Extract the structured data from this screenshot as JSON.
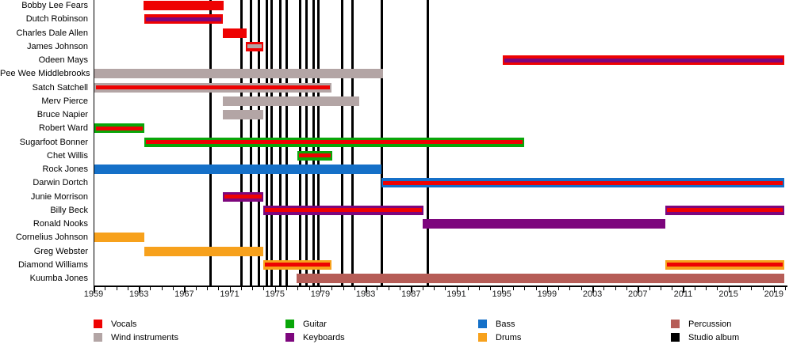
{
  "chart_data": {
    "type": "gantt-timeline",
    "description": "Band members timeline; horizontal bars show each member's tenure colored by instrument, with an optional inner stripe for a secondary role; vertical black lines mark studio album releases.",
    "x_axis": {
      "start": 1959,
      "end": 2020.2,
      "major_ticks": [
        1959,
        1963,
        1967,
        1971,
        1975,
        1979,
        1983,
        1987,
        1991,
        1995,
        1999,
        2003,
        2007,
        2011,
        2015,
        2019
      ],
      "minor_step": 1,
      "grid": false
    },
    "colors": {
      "vocals": "#ee0202",
      "wind_instruments": "#b3a5a5",
      "guitar": "#09a609",
      "keyboards": "#7d067d",
      "bass": "#1570c8",
      "drums": "#f7a11c",
      "percussion": "#b65d57",
      "studio_album": "#000000"
    },
    "members": [
      {
        "name": "Bobby Lee Fears",
        "segments": [
          {
            "start": 1963.4,
            "end": 1970.5,
            "instrument": "vocals",
            "stripe": null
          }
        ]
      },
      {
        "name": "Dutch Robinson",
        "segments": [
          {
            "start": 1963.5,
            "end": 1970.4,
            "instrument": "vocals",
            "stripe": "keyboards"
          }
        ]
      },
      {
        "name": "Charles Dale Allen",
        "segments": [
          {
            "start": 1970.4,
            "end": 1972.5,
            "instrument": "vocals",
            "stripe": null
          }
        ]
      },
      {
        "name": "James Johnson",
        "segments": [
          {
            "start": 1972.4,
            "end": 1974.0,
            "instrument": "vocals",
            "stripe": "wind_instruments"
          }
        ]
      },
      {
        "name": "Odeen Mays",
        "segments": [
          {
            "start": 1995.1,
            "end": 2019.9,
            "instrument": "vocals",
            "stripe": "keyboards"
          }
        ]
      },
      {
        "name": "Pee Wee Middlebrooks",
        "segments": [
          {
            "start": 1959.1,
            "end": 1984.5,
            "instrument": "wind_instruments",
            "stripe": null
          }
        ]
      },
      {
        "name": "Satch Satchell",
        "segments": [
          {
            "start": 1959.05,
            "end": 1980.0,
            "instrument": "wind_instruments",
            "stripe": "vocals"
          }
        ]
      },
      {
        "name": "Merv Pierce",
        "segments": [
          {
            "start": 1970.4,
            "end": 1982.4,
            "instrument": "wind_instruments",
            "stripe": null
          }
        ]
      },
      {
        "name": "Bruce Napier",
        "segments": [
          {
            "start": 1970.4,
            "end": 1974.0,
            "instrument": "wind_instruments",
            "stripe": null
          }
        ]
      },
      {
        "name": "Robert Ward",
        "segments": [
          {
            "start": 1959.05,
            "end": 1963.5,
            "instrument": "guitar",
            "stripe": "vocals"
          }
        ]
      },
      {
        "name": "Sugarfoot Bonner",
        "segments": [
          {
            "start": 1963.5,
            "end": 1997.0,
            "instrument": "guitar",
            "stripe": "vocals"
          }
        ]
      },
      {
        "name": "Chet Willis",
        "segments": [
          {
            "start": 1976.95,
            "end": 1980.05,
            "instrument": "guitar",
            "stripe": "vocals"
          }
        ]
      },
      {
        "name": "Rock Jones",
        "segments": [
          {
            "start": 1959.05,
            "end": 1984.4,
            "instrument": "bass",
            "stripe": null
          }
        ]
      },
      {
        "name": "Darwin Dortch",
        "segments": [
          {
            "start": 1984.4,
            "end": 2019.9,
            "instrument": "bass",
            "stripe": "vocals"
          }
        ]
      },
      {
        "name": "Junie Morrison",
        "segments": [
          {
            "start": 1970.4,
            "end": 1974.0,
            "instrument": "keyboards",
            "stripe": "vocals"
          }
        ]
      },
      {
        "name": "Billy Beck",
        "segments": [
          {
            "start": 1974.0,
            "end": 1988.1,
            "instrument": "keyboards",
            "stripe": "vocals"
          },
          {
            "start": 2009.4,
            "end": 2019.9,
            "instrument": "keyboards",
            "stripe": "vocals"
          }
        ]
      },
      {
        "name": "Ronald Nooks",
        "segments": [
          {
            "start": 1988.0,
            "end": 2009.4,
            "instrument": "keyboards",
            "stripe": null
          }
        ]
      },
      {
        "name": "Cornelius Johnson",
        "segments": [
          {
            "start": 1959.05,
            "end": 1963.5,
            "instrument": "drums",
            "stripe": null
          }
        ]
      },
      {
        "name": "Greg Webster",
        "segments": [
          {
            "start": 1963.5,
            "end": 1974.0,
            "instrument": "drums",
            "stripe": null
          }
        ]
      },
      {
        "name": "Diamond Williams",
        "segments": [
          {
            "start": 1974.0,
            "end": 1980.0,
            "instrument": "drums",
            "stripe": "vocals"
          },
          {
            "start": 2009.4,
            "end": 2019.9,
            "instrument": "drums",
            "stripe": "vocals"
          }
        ]
      },
      {
        "name": "Kuumba Jones",
        "segments": [
          {
            "start": 1976.9,
            "end": 2019.9,
            "instrument": "percussion",
            "stripe": null
          }
        ]
      }
    ],
    "album_years": [
      1969.35,
      1972.05,
      1972.85,
      1973.6,
      1974.25,
      1974.72,
      1975.5,
      1976.05,
      1977.2,
      1977.75,
      1978.4,
      1978.85,
      1980.95,
      1981.85,
      1984.4,
      1988.5
    ],
    "legend": {
      "position": "bottom",
      "columns": [
        [
          {
            "label": "Vocals",
            "key": "vocals"
          },
          {
            "label": "Wind instruments",
            "key": "wind_instruments"
          }
        ],
        [
          {
            "label": "Guitar",
            "key": "guitar"
          },
          {
            "label": "Keyboards",
            "key": "keyboards"
          }
        ],
        [
          {
            "label": "Bass",
            "key": "bass"
          },
          {
            "label": "Drums",
            "key": "drums"
          }
        ],
        [
          {
            "label": "Percussion",
            "key": "percussion"
          },
          {
            "label": "Studio album",
            "key": "studio_album"
          }
        ]
      ]
    }
  }
}
